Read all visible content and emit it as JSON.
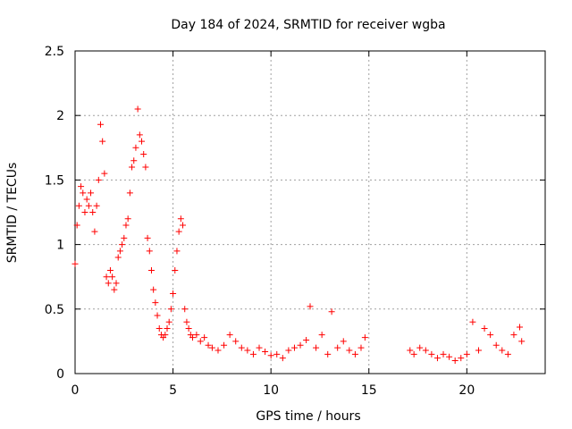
{
  "chart_data": {
    "type": "scatter",
    "title": "Day 184 of 2024, SRMTID for receiver wgba",
    "xlabel": "GPS time / hours",
    "ylabel": "SRMTID / TECUs",
    "xlim": [
      0,
      24
    ],
    "ylim": [
      0,
      2.5
    ],
    "xticks": [
      0,
      5,
      10,
      15,
      20
    ],
    "yticks": [
      0,
      0.5,
      1,
      1.5,
      2,
      2.5
    ],
    "xtick_labels": [
      "0",
      "5",
      "10",
      "15",
      "20"
    ],
    "ytick_labels": [
      "0",
      "0.5",
      "1",
      "1.5",
      "2",
      "2.5"
    ],
    "grid": true,
    "marker": "+",
    "colors": {
      "points": "#ff0000",
      "frame": "#000000",
      "grid": "#a0a0a0"
    },
    "series": [
      {
        "name": "SRMTID",
        "x": [
          0.0,
          0.1,
          0.2,
          0.3,
          0.4,
          0.5,
          0.6,
          0.7,
          0.8,
          0.9,
          1.0,
          1.1,
          1.2,
          1.3,
          1.4,
          1.5,
          1.6,
          1.7,
          1.8,
          1.9,
          2.0,
          2.1,
          2.2,
          2.3,
          2.4,
          2.5,
          2.6,
          2.7,
          2.8,
          2.9,
          3.0,
          3.1,
          3.2,
          3.3,
          3.4,
          3.5,
          3.6,
          3.7,
          3.8,
          3.9,
          4.0,
          4.1,
          4.2,
          4.3,
          4.4,
          4.5,
          4.6,
          4.7,
          4.8,
          4.9,
          5.0,
          5.1,
          5.2,
          5.3,
          5.4,
          5.5,
          5.6,
          5.7,
          5.8,
          5.9,
          6.0,
          6.2,
          6.4,
          6.6,
          6.8,
          7.0,
          7.3,
          7.6,
          7.9,
          8.2,
          8.5,
          8.8,
          9.1,
          9.4,
          9.7,
          10.0,
          10.3,
          10.6,
          10.9,
          11.2,
          11.5,
          11.8,
          12.0,
          12.3,
          12.6,
          12.9,
          13.1,
          13.4,
          13.7,
          14.0,
          14.3,
          14.6,
          14.8,
          17.1,
          17.3,
          17.6,
          17.9,
          18.2,
          18.5,
          18.8,
          19.1,
          19.4,
          19.7,
          20.0,
          20.3,
          20.6,
          20.9,
          21.2,
          21.5,
          21.8,
          22.1,
          22.4,
          22.7,
          22.8
        ],
        "y": [
          0.85,
          1.15,
          1.3,
          1.45,
          1.4,
          1.25,
          1.35,
          1.3,
          1.4,
          1.25,
          1.1,
          1.3,
          1.5,
          1.93,
          1.8,
          1.55,
          0.75,
          0.7,
          0.8,
          0.75,
          0.65,
          0.7,
          0.9,
          0.95,
          1.0,
          1.05,
          1.15,
          1.2,
          1.4,
          1.6,
          1.65,
          1.75,
          2.05,
          1.85,
          1.8,
          1.7,
          1.6,
          1.05,
          0.95,
          0.8,
          0.65,
          0.55,
          0.45,
          0.35,
          0.3,
          0.28,
          0.3,
          0.35,
          0.4,
          0.5,
          0.62,
          0.8,
          0.95,
          1.1,
          1.2,
          1.15,
          0.5,
          0.4,
          0.35,
          0.3,
          0.28,
          0.3,
          0.25,
          0.28,
          0.22,
          0.2,
          0.18,
          0.22,
          0.3,
          0.25,
          0.2,
          0.18,
          0.15,
          0.2,
          0.17,
          0.14,
          0.15,
          0.12,
          0.18,
          0.2,
          0.22,
          0.26,
          0.52,
          0.2,
          0.3,
          0.15,
          0.48,
          0.2,
          0.25,
          0.18,
          0.15,
          0.2,
          0.28,
          0.18,
          0.15,
          0.2,
          0.18,
          0.15,
          0.12,
          0.15,
          0.13,
          0.1,
          0.12,
          0.15,
          0.4,
          0.18,
          0.35,
          0.3,
          0.22,
          0.18,
          0.15,
          0.3,
          0.36,
          0.25
        ]
      }
    ]
  }
}
